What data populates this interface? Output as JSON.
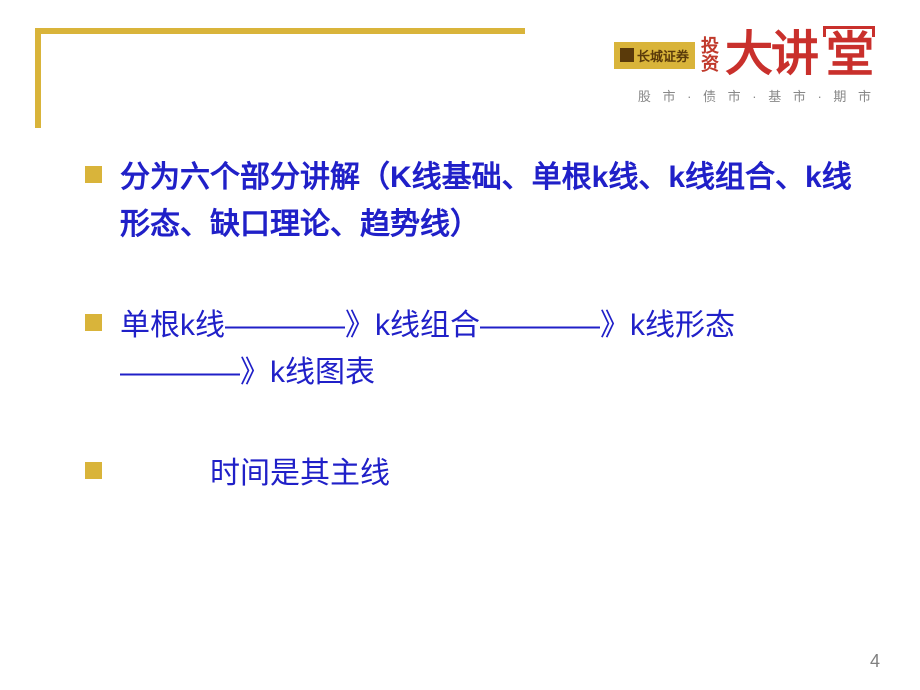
{
  "logo": {
    "company": "长城证券",
    "invest_top": "投",
    "invest_bottom": "资",
    "big_text_1": "大讲",
    "big_text_2": "堂",
    "subtitle": "股 市 · 债 市 · 基 市 · 期 市"
  },
  "bullets": [
    {
      "text": "分为六个部分讲解（K线基础、单根k线、k线组合、k线形态、缺口理论、趋势线）",
      "bold": true
    },
    {
      "text": "单根k线————》k线组合————》k线形态————》k线图表",
      "bold": false
    },
    {
      "text": "　　　时间是其主线",
      "bold": false
    }
  ],
  "page_number": "4",
  "colors": {
    "accent": "#d9b43a",
    "text_primary": "#2020c8",
    "logo_red": "#c9302c",
    "page_num": "#808080"
  }
}
